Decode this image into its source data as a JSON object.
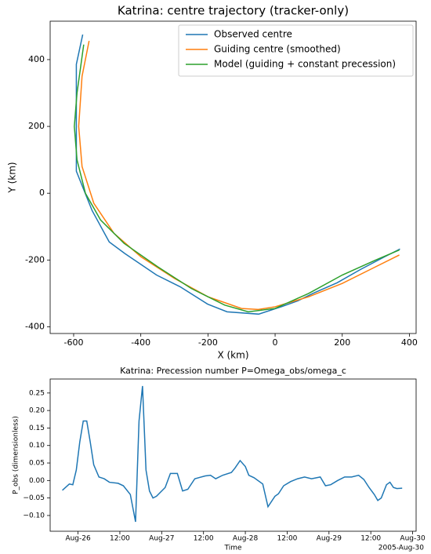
{
  "chart_data": [
    {
      "type": "line",
      "title": "Katrina: centre trajectory (tracker-only)",
      "x_label": "X (km)",
      "y_label": "Y (km)",
      "xlim": [
        -670,
        420
      ],
      "ylim": [
        -420,
        515
      ],
      "xticks": [
        -600,
        -400,
        -200,
        0,
        200,
        400
      ],
      "yticks": [
        -400,
        -200,
        0,
        200,
        400
      ],
      "legend": "upper right",
      "series": [
        {
          "name": "Observed centre",
          "color": "#1f77b4",
          "x": [
            -573,
            -592,
            -592,
            -545,
            -494,
            -447,
            -353,
            -283,
            -201,
            -143,
            -49,
            21,
            68,
            115,
            185,
            255,
            325,
            372
          ],
          "values": [
            475,
            386,
            66,
            -52,
            -146,
            -181,
            -245,
            -280,
            -332,
            -355,
            -362,
            -339,
            -322,
            -299,
            -268,
            -228,
            -191,
            -167
          ]
        },
        {
          "name": "Guiding centre (smoothed)",
          "color": "#ff7f0e",
          "x": [
            -554,
            -575,
            -585,
            -575,
            -540,
            -480,
            -400,
            -300,
            -200,
            -100,
            -50,
            0,
            100,
            200,
            300,
            370
          ],
          "values": [
            456,
            350,
            200,
            80,
            -30,
            -120,
            -190,
            -255,
            -310,
            -345,
            -348,
            -340,
            -310,
            -270,
            -220,
            -185
          ]
        },
        {
          "name": "Model (guiding + constant precession)",
          "color": "#2ca02c",
          "x": [
            -570,
            -590,
            -598,
            -590,
            -565,
            -520,
            -450,
            -350,
            -250,
            -150,
            -80,
            0,
            100,
            200,
            300,
            370
          ],
          "values": [
            445,
            300,
            200,
            100,
            0,
            -80,
            -150,
            -220,
            -285,
            -335,
            -355,
            -345,
            -300,
            -245,
            -200,
            -170
          ]
        }
      ]
    },
    {
      "type": "line",
      "title": "Katrina: Precession number P=Omega_obs/omega_c",
      "x_label": "Time",
      "y_label": "P_obs (dimensionless)",
      "x_offset_label": "2005-Aug-30",
      "xlim": [
        "2005-08-25T16:00",
        "2005-08-30T01:00"
      ],
      "ylim": [
        -0.145,
        0.29
      ],
      "xticks": [
        {
          "value": "2005-08-26T00:00",
          "label": "Aug-26"
        },
        {
          "value": "2005-08-26T12:00",
          "label": "12:00"
        },
        {
          "value": "2005-08-27T00:00",
          "label": "Aug-27"
        },
        {
          "value": "2005-08-27T12:00",
          "label": "12:00"
        },
        {
          "value": "2005-08-28T00:00",
          "label": "Aug-28"
        },
        {
          "value": "2005-08-28T12:00",
          "label": "12:00"
        },
        {
          "value": "2005-08-29T00:00",
          "label": "Aug-29"
        },
        {
          "value": "2005-08-29T12:00",
          "label": "12:00"
        },
        {
          "value": "2005-08-30T00:00",
          "label": "Aug-30"
        }
      ],
      "yticks": [
        {
          "value": -0.1,
          "label": "−0.10"
        },
        {
          "value": -0.05,
          "label": "−0.05"
        },
        {
          "value": 0,
          "label": "0.00"
        },
        {
          "value": 0.05,
          "label": "0.05"
        },
        {
          "value": 0.1,
          "label": "0.10"
        },
        {
          "value": 0.15,
          "label": "0.15"
        },
        {
          "value": 0.2,
          "label": "0.20"
        },
        {
          "value": 0.25,
          "label": "0.25"
        }
      ],
      "x": [
        "2005-08-25T19:30",
        "2005-08-25T21:30",
        "2005-08-25T22:30",
        "2005-08-25T23:30",
        "2005-08-26T00:30",
        "2005-08-26T01:30",
        "2005-08-26T02:30",
        "2005-08-26T03:30",
        "2005-08-26T04:30",
        "2005-08-26T06:00",
        "2005-08-26T07:30",
        "2005-08-26T09:00",
        "2005-08-26T11:30",
        "2005-08-26T13:00",
        "2005-08-26T15:00",
        "2005-08-26T16:30",
        "2005-08-26T17:30",
        "2005-08-26T18:30",
        "2005-08-26T19:30",
        "2005-08-26T20:30",
        "2005-08-26T21:30",
        "2005-08-26T22:30",
        "2005-08-27T01:00",
        "2005-08-27T02:30",
        "2005-08-27T04:30",
        "2005-08-27T06:00",
        "2005-08-27T07:30",
        "2005-08-27T09:30",
        "2005-08-27T12:30",
        "2005-08-27T14:00",
        "2005-08-27T15:30",
        "2005-08-27T17:30",
        "2005-08-27T20:00",
        "2005-08-27T21:00",
        "2005-08-27T22:30",
        "2005-08-28T00:00",
        "2005-08-28T01:00",
        "2005-08-28T02:30",
        "2005-08-28T05:00",
        "2005-08-28T06:30",
        "2005-08-28T08:30",
        "2005-08-28T09:30",
        "2005-08-28T11:00",
        "2005-08-28T13:00",
        "2005-08-28T15:00",
        "2005-08-28T17:00",
        "2005-08-28T19:00",
        "2005-08-28T21:30",
        "2005-08-28T23:00",
        "2005-08-29T00:30",
        "2005-08-29T02:30",
        "2005-08-29T04:30",
        "2005-08-29T06:30",
        "2005-08-29T08:30",
        "2005-08-29T10:00",
        "2005-08-29T11:30",
        "2005-08-29T13:00",
        "2005-08-29T14:00",
        "2005-08-29T15:00",
        "2005-08-29T16:30",
        "2005-08-29T17:30",
        "2005-08-29T18:30",
        "2005-08-29T19:30",
        "2005-08-29T21:00"
      ],
      "series": [
        {
          "color": "#1f77b4",
          "values": [
            -0.028,
            -0.01,
            -0.012,
            0.03,
            0.11,
            0.17,
            0.17,
            0.11,
            0.045,
            0.01,
            0.005,
            -0.005,
            -0.008,
            -0.015,
            -0.04,
            -0.118,
            0.17,
            0.27,
            0.03,
            -0.03,
            -0.05,
            -0.045,
            -0.02,
            0.02,
            0.02,
            -0.03,
            -0.025,
            0.005,
            0.013,
            0.015,
            0.005,
            0.015,
            0.023,
            0.035,
            0.057,
            0.04,
            0.015,
            0.008,
            -0.01,
            -0.075,
            -0.045,
            -0.038,
            -0.015,
            -0.003,
            0.005,
            0.01,
            0.005,
            0.01,
            -0.015,
            -0.012,
            0,
            0.01,
            0.01,
            0.015,
            0.003,
            -0.02,
            -0.04,
            -0.057,
            -0.05,
            -0.012,
            -0.005,
            -0.02,
            -0.023,
            -0.022
          ]
        }
      ]
    }
  ]
}
